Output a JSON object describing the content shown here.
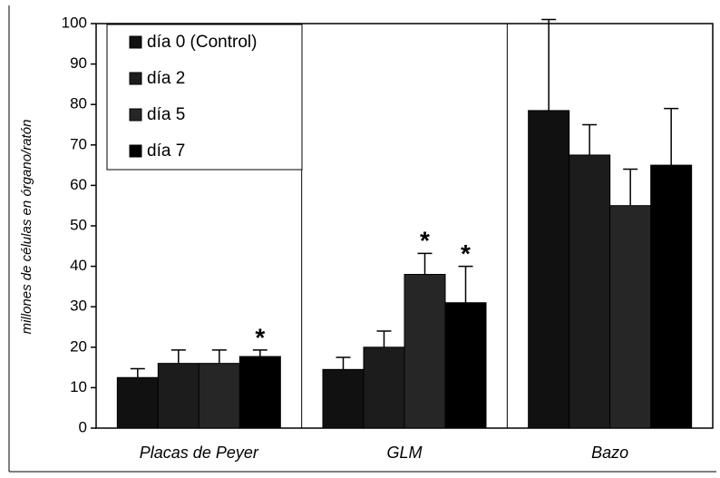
{
  "chart_data": {
    "type": "bar",
    "y_label": "millones de células en órgano/ratón",
    "categories": [
      "Placas de Peyer",
      "GLM",
      "Bazo"
    ],
    "series": [
      {
        "name": "día 0 (Control)",
        "color": "#111111",
        "values": [
          12.5,
          14.5,
          78.5
        ],
        "errors": [
          2.2,
          3,
          22.5
        ],
        "markers": [
          null,
          null,
          null
        ]
      },
      {
        "name": "día 2",
        "color": "#1c1c1c",
        "values": [
          16,
          20,
          67.5
        ],
        "errors": [
          3.3,
          4,
          7.5
        ],
        "markers": [
          null,
          null,
          null
        ]
      },
      {
        "name": "día 5",
        "color": "#262626",
        "values": [
          16,
          38,
          55
        ],
        "errors": [
          3.3,
          5.2,
          9
        ],
        "markers": [
          null,
          "*",
          null
        ]
      },
      {
        "name": "día 7",
        "color": "#000000",
        "values": [
          17.7,
          31,
          65
        ],
        "errors": [
          1.6,
          9,
          14
        ],
        "markers": [
          "*",
          "*",
          null
        ]
      }
    ],
    "ylim": [
      0,
      100
    ],
    "yticks": [
      0,
      10,
      20,
      30,
      40,
      50,
      60,
      70,
      80,
      90,
      100
    ],
    "legend": "upper left"
  }
}
